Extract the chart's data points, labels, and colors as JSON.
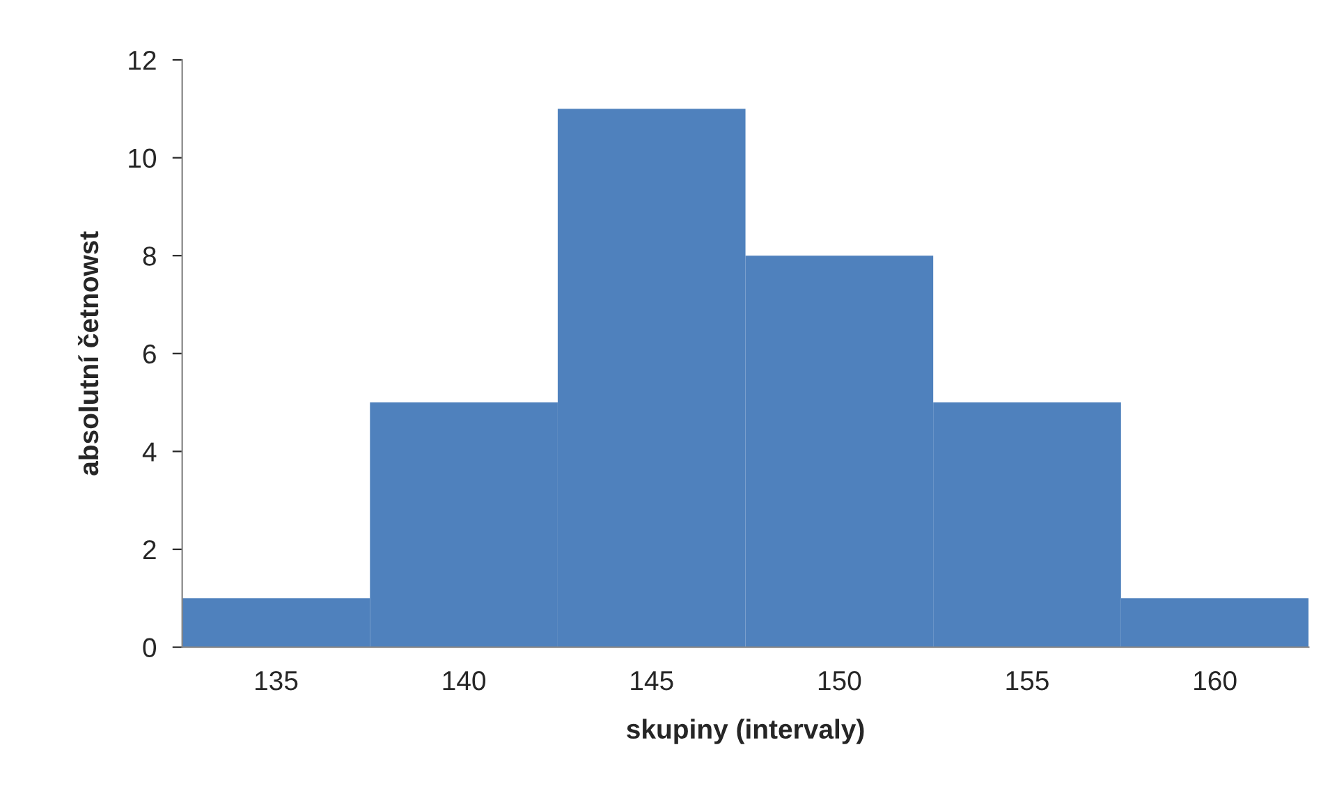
{
  "chart_data": {
    "type": "histogram",
    "xlabel": "skupiny (intervaly)",
    "ylabel": "absolutní četnowst",
    "bins": [
      132.5,
      137.5,
      142.5,
      147.5,
      152.5,
      157.5,
      162.5
    ],
    "values": [
      1,
      5,
      11,
      8,
      5,
      1
    ],
    "color": "#4f81bd",
    "xlim": [
      132.5,
      162.5
    ],
    "xticks": [
      135,
      140,
      145,
      150,
      155,
      160
    ],
    "ylim": [
      0,
      12
    ],
    "yticks": [
      0,
      2,
      4,
      6,
      8,
      10,
      12
    ],
    "grid": false,
    "legend": false
  }
}
